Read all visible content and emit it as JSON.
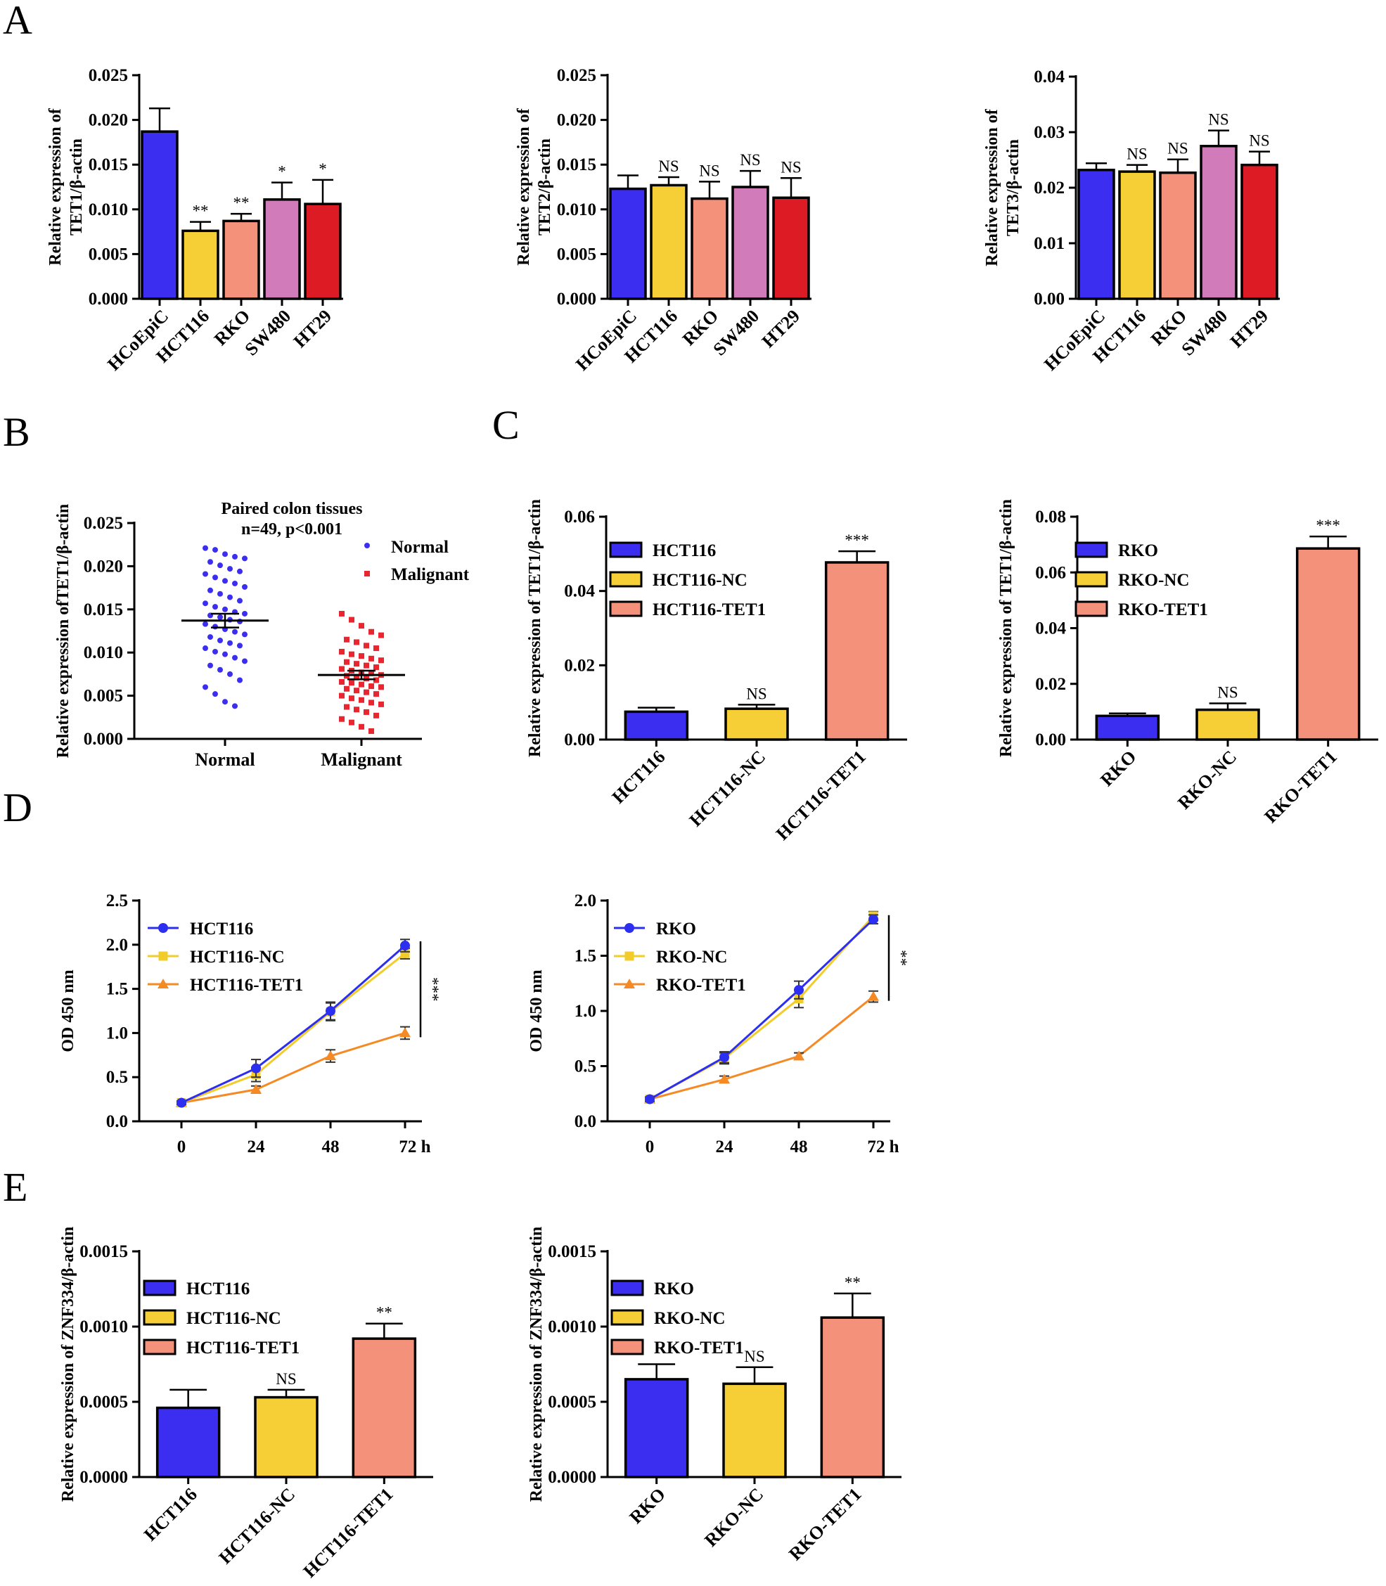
{
  "figure": {
    "panel_labels": [
      "A",
      "B",
      "C",
      "D",
      "E"
    ]
  },
  "colors": {
    "blue": "#3b2ef0",
    "yellow": "#f6cf36",
    "salmon": "#f4917a",
    "pink": "#d27bbb",
    "red": "#dd1b25",
    "scatter_red": "#e8262f",
    "line_blue": "#2c2ef0",
    "line_yellow": "#f2cc2a",
    "line_orange": "#f58a25"
  },
  "chart_data": [
    {
      "id": "A1",
      "type": "bar",
      "panel": "A",
      "categories": [
        "HCoEpiC",
        "HCT116",
        "RKO",
        "SW480",
        "HT29"
      ],
      "values": [
        0.0187,
        0.0076,
        0.0087,
        0.0111,
        0.0106
      ],
      "errors": [
        0.0026,
        0.001,
        0.0008,
        0.0019,
        0.0027
      ],
      "significance": [
        "",
        "**",
        "**",
        "*",
        "*"
      ],
      "colors": [
        "#3b2ef0",
        "#f6cf36",
        "#f4917a",
        "#d27bbb",
        "#dd1b25"
      ],
      "ylabel": [
        "Relative expression of",
        "TET1/β-actin"
      ],
      "ylim": [
        0,
        0.025
      ],
      "yticks": [
        "0.000",
        "0.005",
        "0.010",
        "0.015",
        "0.020",
        "0.025"
      ]
    },
    {
      "id": "A2",
      "type": "bar",
      "panel": "A",
      "categories": [
        "HCoEpiC",
        "HCT116",
        "RKO",
        "SW480",
        "HT29"
      ],
      "values": [
        0.0123,
        0.0127,
        0.0112,
        0.0125,
        0.0113
      ],
      "errors": [
        0.0015,
        0.0009,
        0.0019,
        0.0018,
        0.0022
      ],
      "significance": [
        "",
        "NS",
        "NS",
        "NS",
        "NS"
      ],
      "colors": [
        "#3b2ef0",
        "#f6cf36",
        "#f4917a",
        "#d27bbb",
        "#dd1b25"
      ],
      "ylabel": [
        "Relative expression of",
        "TET2/β-actin"
      ],
      "ylim": [
        0,
        0.025
      ],
      "yticks": [
        "0.000",
        "0.005",
        "0.010",
        "0.015",
        "0.020",
        "0.025"
      ]
    },
    {
      "id": "A3",
      "type": "bar",
      "panel": "A",
      "categories": [
        "HCoEpiC",
        "HCT116",
        "RKO",
        "SW480",
        "HT29"
      ],
      "values": [
        0.0232,
        0.0229,
        0.0227,
        0.0275,
        0.0241
      ],
      "errors": [
        0.0012,
        0.0012,
        0.0024,
        0.0028,
        0.0024
      ],
      "significance": [
        "",
        "NS",
        "NS",
        "NS",
        "NS"
      ],
      "colors": [
        "#3b2ef0",
        "#f6cf36",
        "#f4917a",
        "#d27bbb",
        "#dd1b25"
      ],
      "ylabel": [
        "Relative expression of",
        "TET3/β-actin"
      ],
      "ylim": [
        0,
        0.04
      ],
      "yticks": [
        "0.00",
        "0.01",
        "0.02",
        "0.03",
        "0.04"
      ]
    },
    {
      "id": "B",
      "type": "scatter",
      "panel": "B",
      "title": [
        "Paired colon tissues",
        "n=49, p<0.001"
      ],
      "categories": [
        "Normal",
        "Malignant"
      ],
      "legend": [
        "Normal",
        "Malignant"
      ],
      "ylabel": [
        "Relative expression ofTET1/β-actin"
      ],
      "ylim": [
        0,
        0.025
      ],
      "yticks": [
        "0.000",
        "0.005",
        "0.010",
        "0.015",
        "0.020",
        "0.025"
      ],
      "means": [
        0.0137,
        0.0074
      ],
      "sem": [
        0.0008,
        0.0005
      ],
      "series": [
        {
          "name": "Normal",
          "values": [
            0.0221,
            0.0219,
            0.0214,
            0.0211,
            0.0209,
            0.0205,
            0.0201,
            0.0197,
            0.0194,
            0.0191,
            0.0187,
            0.0183,
            0.018,
            0.0176,
            0.0172,
            0.0168,
            0.0164,
            0.016,
            0.0157,
            0.0153,
            0.015,
            0.0147,
            0.0145,
            0.0143,
            0.0141,
            0.0138,
            0.0136,
            0.0133,
            0.013,
            0.0127,
            0.0124,
            0.0121,
            0.0118,
            0.0114,
            0.0111,
            0.0108,
            0.0105,
            0.0101,
            0.0098,
            0.0094,
            0.009,
            0.0085,
            0.008,
            0.0075,
            0.0068,
            0.006,
            0.0052,
            0.0043,
            0.0038
          ]
        },
        {
          "name": "Malignant",
          "values": [
            0.0145,
            0.0138,
            0.0131,
            0.0124,
            0.012,
            0.0115,
            0.0112,
            0.0108,
            0.0105,
            0.0101,
            0.0098,
            0.0096,
            0.0093,
            0.0091,
            0.0089,
            0.0087,
            0.0085,
            0.0083,
            0.0081,
            0.0079,
            0.0077,
            0.0076,
            0.0074,
            0.0073,
            0.0071,
            0.007,
            0.0068,
            0.0066,
            0.0065,
            0.0063,
            0.0061,
            0.006,
            0.0058,
            0.0056,
            0.0054,
            0.0052,
            0.005,
            0.0047,
            0.0045,
            0.0042,
            0.004,
            0.0037,
            0.0034,
            0.0031,
            0.0027,
            0.0023,
            0.0019,
            0.0014,
            0.0009
          ]
        }
      ]
    },
    {
      "id": "C1",
      "type": "bar",
      "panel": "C",
      "categories": [
        "HCT116",
        "HCT116-NC",
        "HCT116-TET1"
      ],
      "values": [
        0.0075,
        0.0083,
        0.0477
      ],
      "errors": [
        0.0011,
        0.0011,
        0.003
      ],
      "significance": [
        "",
        "NS",
        "***"
      ],
      "colors": [
        "#3b2ef0",
        "#f6cf36",
        "#f4917a"
      ],
      "legend": [
        "HCT116",
        "HCT116-NC",
        "HCT116-TET1"
      ],
      "ylabel": [
        "Relative expression of TET1/β-actin"
      ],
      "ylim": [
        0,
        0.06
      ],
      "yticks": [
        "0.00",
        "0.02",
        "0.04",
        "0.06"
      ]
    },
    {
      "id": "C2",
      "type": "bar",
      "panel": "C",
      "categories": [
        "RKO",
        "RKO-NC",
        "RKO-TET1"
      ],
      "values": [
        0.0085,
        0.0107,
        0.0686
      ],
      "errors": [
        0.0009,
        0.0023,
        0.0043
      ],
      "significance": [
        "",
        "NS",
        "***"
      ],
      "colors": [
        "#3b2ef0",
        "#f6cf36",
        "#f4917a"
      ],
      "legend": [
        "RKO",
        "RKO-NC",
        "RKO-TET1"
      ],
      "ylabel": [
        "Relative expression of TET1/β-actin"
      ],
      "ylim": [
        0,
        0.08
      ],
      "yticks": [
        "0.00",
        "0.02",
        "0.04",
        "0.06",
        "0.08"
      ]
    },
    {
      "id": "D1",
      "type": "line",
      "panel": "D",
      "x": [
        "0",
        "24",
        "48",
        "72 h"
      ],
      "series": [
        {
          "name": "HCT116",
          "values": [
            0.21,
            0.6,
            1.25,
            1.99
          ],
          "errors": [
            0.02,
            0.1,
            0.1,
            0.07
          ],
          "marker": "circle"
        },
        {
          "name": "HCT116-NC",
          "values": [
            0.21,
            0.53,
            1.24,
            1.9
          ],
          "errors": [
            0.02,
            0.08,
            0.1,
            0.06
          ],
          "marker": "square"
        },
        {
          "name": "HCT116-TET1",
          "values": [
            0.21,
            0.36,
            0.74,
            1.0
          ],
          "errors": [
            0.02,
            0.04,
            0.07,
            0.07
          ],
          "marker": "triangle"
        }
      ],
      "significance": "***",
      "ylabel": [
        "OD 450 nm"
      ],
      "ylim": [
        0,
        2.5
      ],
      "yticks": [
        "0.0",
        "0.5",
        "1.0",
        "1.5",
        "2.0",
        "2.5"
      ]
    },
    {
      "id": "D2",
      "type": "line",
      "panel": "D",
      "x": [
        "0",
        "24",
        "48",
        "72 h"
      ],
      "series": [
        {
          "name": "RKO",
          "values": [
            0.2,
            0.58,
            1.19,
            1.83
          ],
          "errors": [
            0.02,
            0.05,
            0.08,
            0.04
          ],
          "marker": "circle"
        },
        {
          "name": "RKO-NC",
          "values": [
            0.2,
            0.57,
            1.11,
            1.86
          ],
          "errors": [
            0.02,
            0.05,
            0.08,
            0.04
          ],
          "marker": "square"
        },
        {
          "name": "RKO-TET1",
          "values": [
            0.2,
            0.38,
            0.59,
            1.13
          ],
          "errors": [
            0.02,
            0.03,
            0.03,
            0.05
          ],
          "marker": "triangle"
        }
      ],
      "significance": "**",
      "ylabel": [
        "OD 450 nm"
      ],
      "ylim": [
        0,
        2.0
      ],
      "yticks": [
        "0.0",
        "0.5",
        "1.0",
        "1.5",
        "2.0"
      ]
    },
    {
      "id": "E1",
      "type": "bar",
      "panel": "E",
      "categories": [
        "HCT116",
        "HCT116-NC",
        "HCT116-TET1"
      ],
      "values": [
        0.00046,
        0.00053,
        0.00092
      ],
      "errors": [
        0.00012,
        5e-05,
        0.0001
      ],
      "significance": [
        "",
        "NS",
        "**"
      ],
      "colors": [
        "#3b2ef0",
        "#f6cf36",
        "#f4917a"
      ],
      "legend": [
        "HCT116",
        "HCT116-NC",
        "HCT116-TET1"
      ],
      "ylabel": [
        "Relative expression of ZNF334/β-actin"
      ],
      "ylim": [
        0,
        0.0015
      ],
      "yticks": [
        "0.0000",
        "0.0005",
        "0.0010",
        "0.0015"
      ]
    },
    {
      "id": "E2",
      "type": "bar",
      "panel": "E",
      "categories": [
        "RKO",
        "RKO-NC",
        "RKO-TET1"
      ],
      "values": [
        0.00065,
        0.00062,
        0.00106
      ],
      "errors": [
        0.0001,
        0.00011,
        0.00016
      ],
      "significance": [
        "",
        "NS",
        "**"
      ],
      "colors": [
        "#3b2ef0",
        "#f6cf36",
        "#f4917a"
      ],
      "legend": [
        "RKO",
        "RKO-NC",
        "RKO-TET1"
      ],
      "ylabel": [
        "Relative expression of ZNF334/β-actin"
      ],
      "ylim": [
        0,
        0.0015
      ],
      "yticks": [
        "0.0000",
        "0.0005",
        "0.0010",
        "0.0015"
      ]
    }
  ]
}
